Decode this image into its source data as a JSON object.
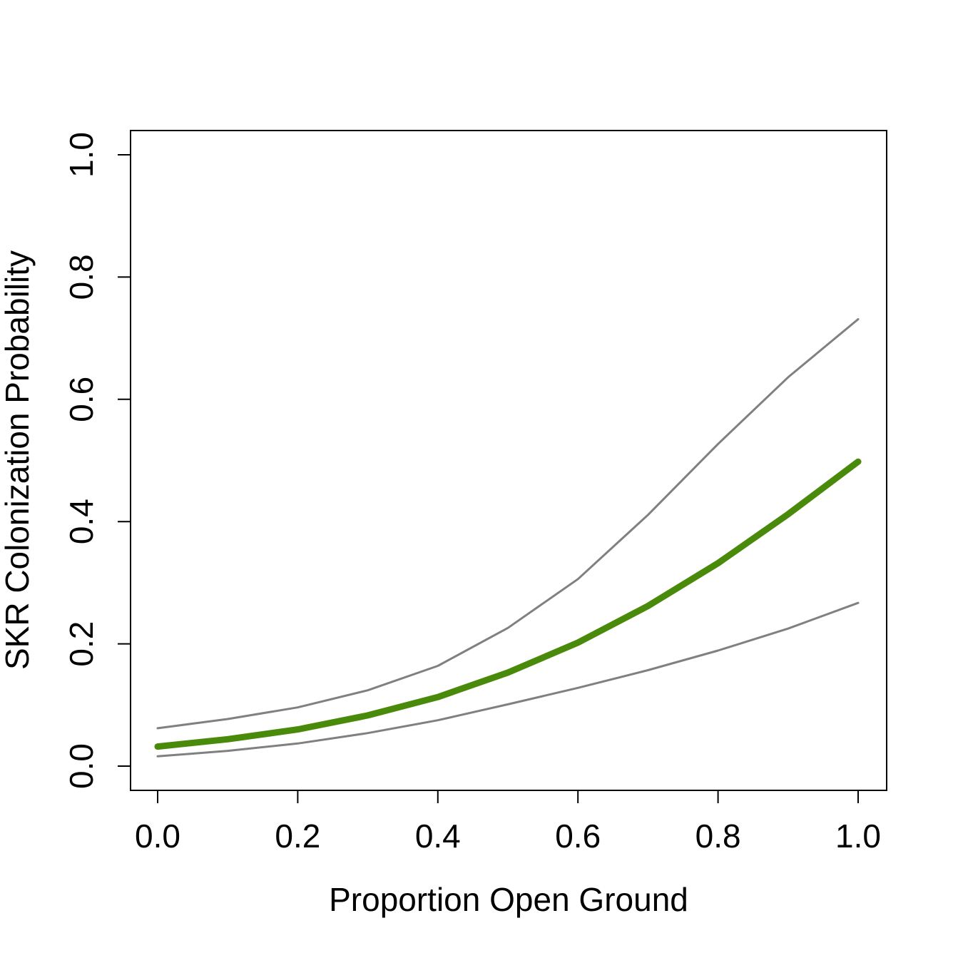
{
  "chart_data": {
    "type": "line",
    "xlabel": "Proportion Open Ground",
    "ylabel": "SKR Colonization Probability",
    "xlim": [
      0.0,
      1.0
    ],
    "ylim": [
      0.0,
      1.0
    ],
    "x_ticks": [
      "0.0",
      "0.2",
      "0.4",
      "0.6",
      "0.8",
      "1.0"
    ],
    "y_ticks": [
      "0.0",
      "0.2",
      "0.4",
      "0.6",
      "0.8",
      "1.0"
    ],
    "grid": false,
    "legend": "none",
    "x": [
      0.0,
      0.1,
      0.2,
      0.3,
      0.4,
      0.5,
      0.6,
      0.7,
      0.8,
      0.9,
      1.0
    ],
    "series": [
      {
        "role": "estimate",
        "color": "#4a8a0a",
        "values": [
          0.032,
          0.044,
          0.06,
          0.083,
          0.113,
          0.153,
          0.202,
          0.262,
          0.332,
          0.412,
          0.498
        ]
      },
      {
        "role": "upper",
        "color": "#808080",
        "values": [
          0.062,
          0.077,
          0.096,
          0.124,
          0.164,
          0.226,
          0.306,
          0.411,
          0.527,
          0.636,
          0.731
        ]
      },
      {
        "role": "lower",
        "color": "#808080",
        "values": [
          0.016,
          0.025,
          0.037,
          0.054,
          0.075,
          0.101,
          0.128,
          0.157,
          0.189,
          0.225,
          0.267
        ]
      }
    ]
  }
}
